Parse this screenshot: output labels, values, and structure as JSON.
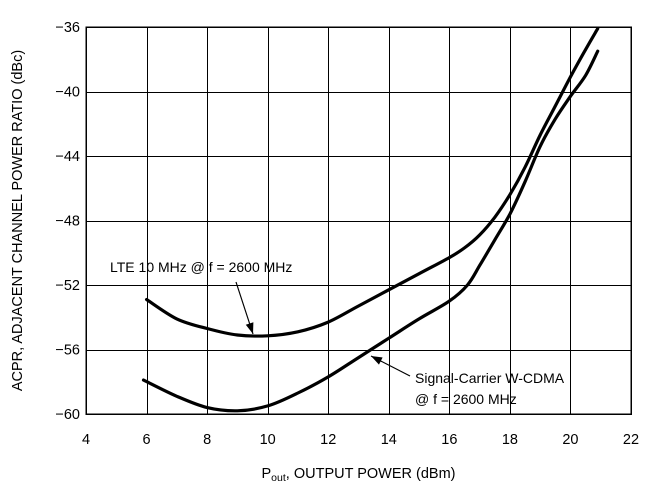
{
  "chart_data": {
    "type": "line",
    "xlabel_main": "P",
    "xlabel_sub": "out",
    "xlabel_rest": ", OUTPUT POWER (dBm)",
    "ylabel": "ACPR, ADJACENT CHANNEL POWER RATIO (dBc)",
    "xlim": [
      4,
      22
    ],
    "ylim": [
      -60,
      -36
    ],
    "x_ticks": [
      4,
      6,
      8,
      10,
      12,
      14,
      16,
      18,
      20,
      22
    ],
    "y_ticks": [
      -36,
      -40,
      -44,
      -48,
      -52,
      -56,
      -60
    ],
    "x_tick_labels": [
      "4",
      "6",
      "8",
      "10",
      "12",
      "14",
      "16",
      "18",
      "20",
      "22"
    ],
    "y_tick_labels": [
      "−36",
      "−40",
      "−44",
      "−48",
      "−52",
      "−56",
      "−60"
    ],
    "grid": true,
    "series": [
      {
        "name": "LTE 10 MHz @ f = 2600 MHz",
        "x": [
          6,
          7,
          8,
          9,
          10,
          11,
          12,
          13,
          14,
          15,
          16,
          16.5,
          17,
          17.5,
          18,
          18.5,
          19,
          19.5,
          20,
          20.5,
          20.9
        ],
        "y": [
          -52.9,
          -54.1,
          -54.7,
          -55.1,
          -55.15,
          -54.9,
          -54.3,
          -53.3,
          -52.3,
          -51.3,
          -50.3,
          -49.7,
          -48.9,
          -47.8,
          -46.4,
          -44.7,
          -42.7,
          -40.9,
          -39.1,
          -37.4,
          -36.1
        ]
      },
      {
        "name": "Signal-Carrier W-CDMA @ f = 2600 MHz",
        "x": [
          5.9,
          7,
          8,
          9,
          10,
          11,
          12,
          13,
          14,
          15,
          16,
          16.6,
          17,
          17.5,
          18,
          18.5,
          19,
          19.5,
          20,
          20.5,
          20.9
        ],
        "y": [
          -57.9,
          -58.9,
          -59.6,
          -59.8,
          -59.5,
          -58.7,
          -57.7,
          -56.5,
          -55.3,
          -54.1,
          -53.0,
          -52.0,
          -50.8,
          -49.2,
          -47.6,
          -45.6,
          -43.4,
          -41.7,
          -40.3,
          -39.0,
          -37.5
        ]
      }
    ],
    "annotations": [
      {
        "line1": "LTE 10 MHz @ f = 2600 MHz",
        "line2": ""
      },
      {
        "line1": "Signal-Carrier W-CDMA",
        "line2": "@ f = 2600 MHz"
      }
    ]
  }
}
